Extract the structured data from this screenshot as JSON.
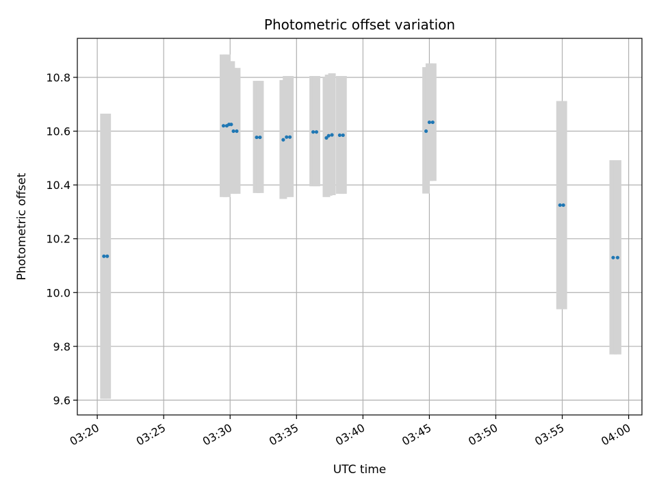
{
  "chart_data": {
    "type": "scatter",
    "title": "Photometric offset variation",
    "xlabel": "UTC time",
    "ylabel": "Photometric offset",
    "grid": true,
    "xlim": [
      "03:18:30",
      "04:01:00"
    ],
    "ylim": [
      9.545,
      10.945
    ],
    "x_ticks": [
      "03:20",
      "03:25",
      "03:30",
      "03:35",
      "03:40",
      "03:45",
      "03:50",
      "03:55",
      "04:00"
    ],
    "y_ticks": [
      9.6,
      9.8,
      10.0,
      10.2,
      10.4,
      10.6,
      10.8
    ],
    "y_tick_labels": [
      "9.6",
      "9.8",
      "10.0",
      "10.2",
      "10.4",
      "10.6",
      "10.8"
    ],
    "colors": {
      "point": "#1f77b4",
      "errorbar": "#d3d3d3",
      "grid": "#b0b0b0"
    },
    "series": [
      {
        "points": [
          {
            "x": "03:20:30",
            "y": 10.135,
            "ylow": 9.605,
            "yhigh": 10.665
          },
          {
            "x": "03:20:45",
            "y": 10.135,
            "ylow": 9.605,
            "yhigh": 10.665
          },
          {
            "x": "03:29:30",
            "y": 10.62,
            "ylow": 10.355,
            "yhigh": 10.885
          },
          {
            "x": "03:29:45",
            "y": 10.62,
            "ylow": 10.355,
            "yhigh": 10.885
          },
          {
            "x": "03:29:55",
            "y": 10.625,
            "ylow": 10.39,
            "yhigh": 10.86
          },
          {
            "x": "03:30:05",
            "y": 10.625,
            "ylow": 10.39,
            "yhigh": 10.86
          },
          {
            "x": "03:30:15",
            "y": 10.6,
            "ylow": 10.367,
            "yhigh": 10.835
          },
          {
            "x": "03:30:30",
            "y": 10.6,
            "ylow": 10.367,
            "yhigh": 10.835
          },
          {
            "x": "03:32:00",
            "y": 10.577,
            "ylow": 10.37,
            "yhigh": 10.787
          },
          {
            "x": "03:32:15",
            "y": 10.577,
            "ylow": 10.37,
            "yhigh": 10.787
          },
          {
            "x": "03:34:00",
            "y": 10.568,
            "ylow": 10.348,
            "yhigh": 10.79
          },
          {
            "x": "03:34:15",
            "y": 10.578,
            "ylow": 10.355,
            "yhigh": 10.805
          },
          {
            "x": "03:34:30",
            "y": 10.578,
            "ylow": 10.355,
            "yhigh": 10.805
          },
          {
            "x": "03:36:15",
            "y": 10.597,
            "ylow": 10.395,
            "yhigh": 10.805
          },
          {
            "x": "03:36:30",
            "y": 10.597,
            "ylow": 10.395,
            "yhigh": 10.805
          },
          {
            "x": "03:37:15",
            "y": 10.575,
            "ylow": 10.355,
            "yhigh": 10.8
          },
          {
            "x": "03:37:25",
            "y": 10.583,
            "ylow": 10.36,
            "yhigh": 10.81
          },
          {
            "x": "03:37:40",
            "y": 10.586,
            "ylow": 10.362,
            "yhigh": 10.815
          },
          {
            "x": "03:38:15",
            "y": 10.585,
            "ylow": 10.367,
            "yhigh": 10.805
          },
          {
            "x": "03:38:30",
            "y": 10.585,
            "ylow": 10.367,
            "yhigh": 10.805
          },
          {
            "x": "03:44:45",
            "y": 10.6,
            "ylow": 10.368,
            "yhigh": 10.838
          },
          {
            "x": "03:45:00",
            "y": 10.633,
            "ylow": 10.415,
            "yhigh": 10.852
          },
          {
            "x": "03:45:15",
            "y": 10.633,
            "ylow": 10.415,
            "yhigh": 10.852
          },
          {
            "x": "03:54:50",
            "y": 10.325,
            "ylow": 9.938,
            "yhigh": 10.712
          },
          {
            "x": "03:55:05",
            "y": 10.325,
            "ylow": 9.938,
            "yhigh": 10.712
          },
          {
            "x": "03:58:50",
            "y": 10.13,
            "ylow": 9.77,
            "yhigh": 10.492
          },
          {
            "x": "03:59:10",
            "y": 10.13,
            "ylow": 9.77,
            "yhigh": 10.492
          }
        ]
      }
    ]
  }
}
